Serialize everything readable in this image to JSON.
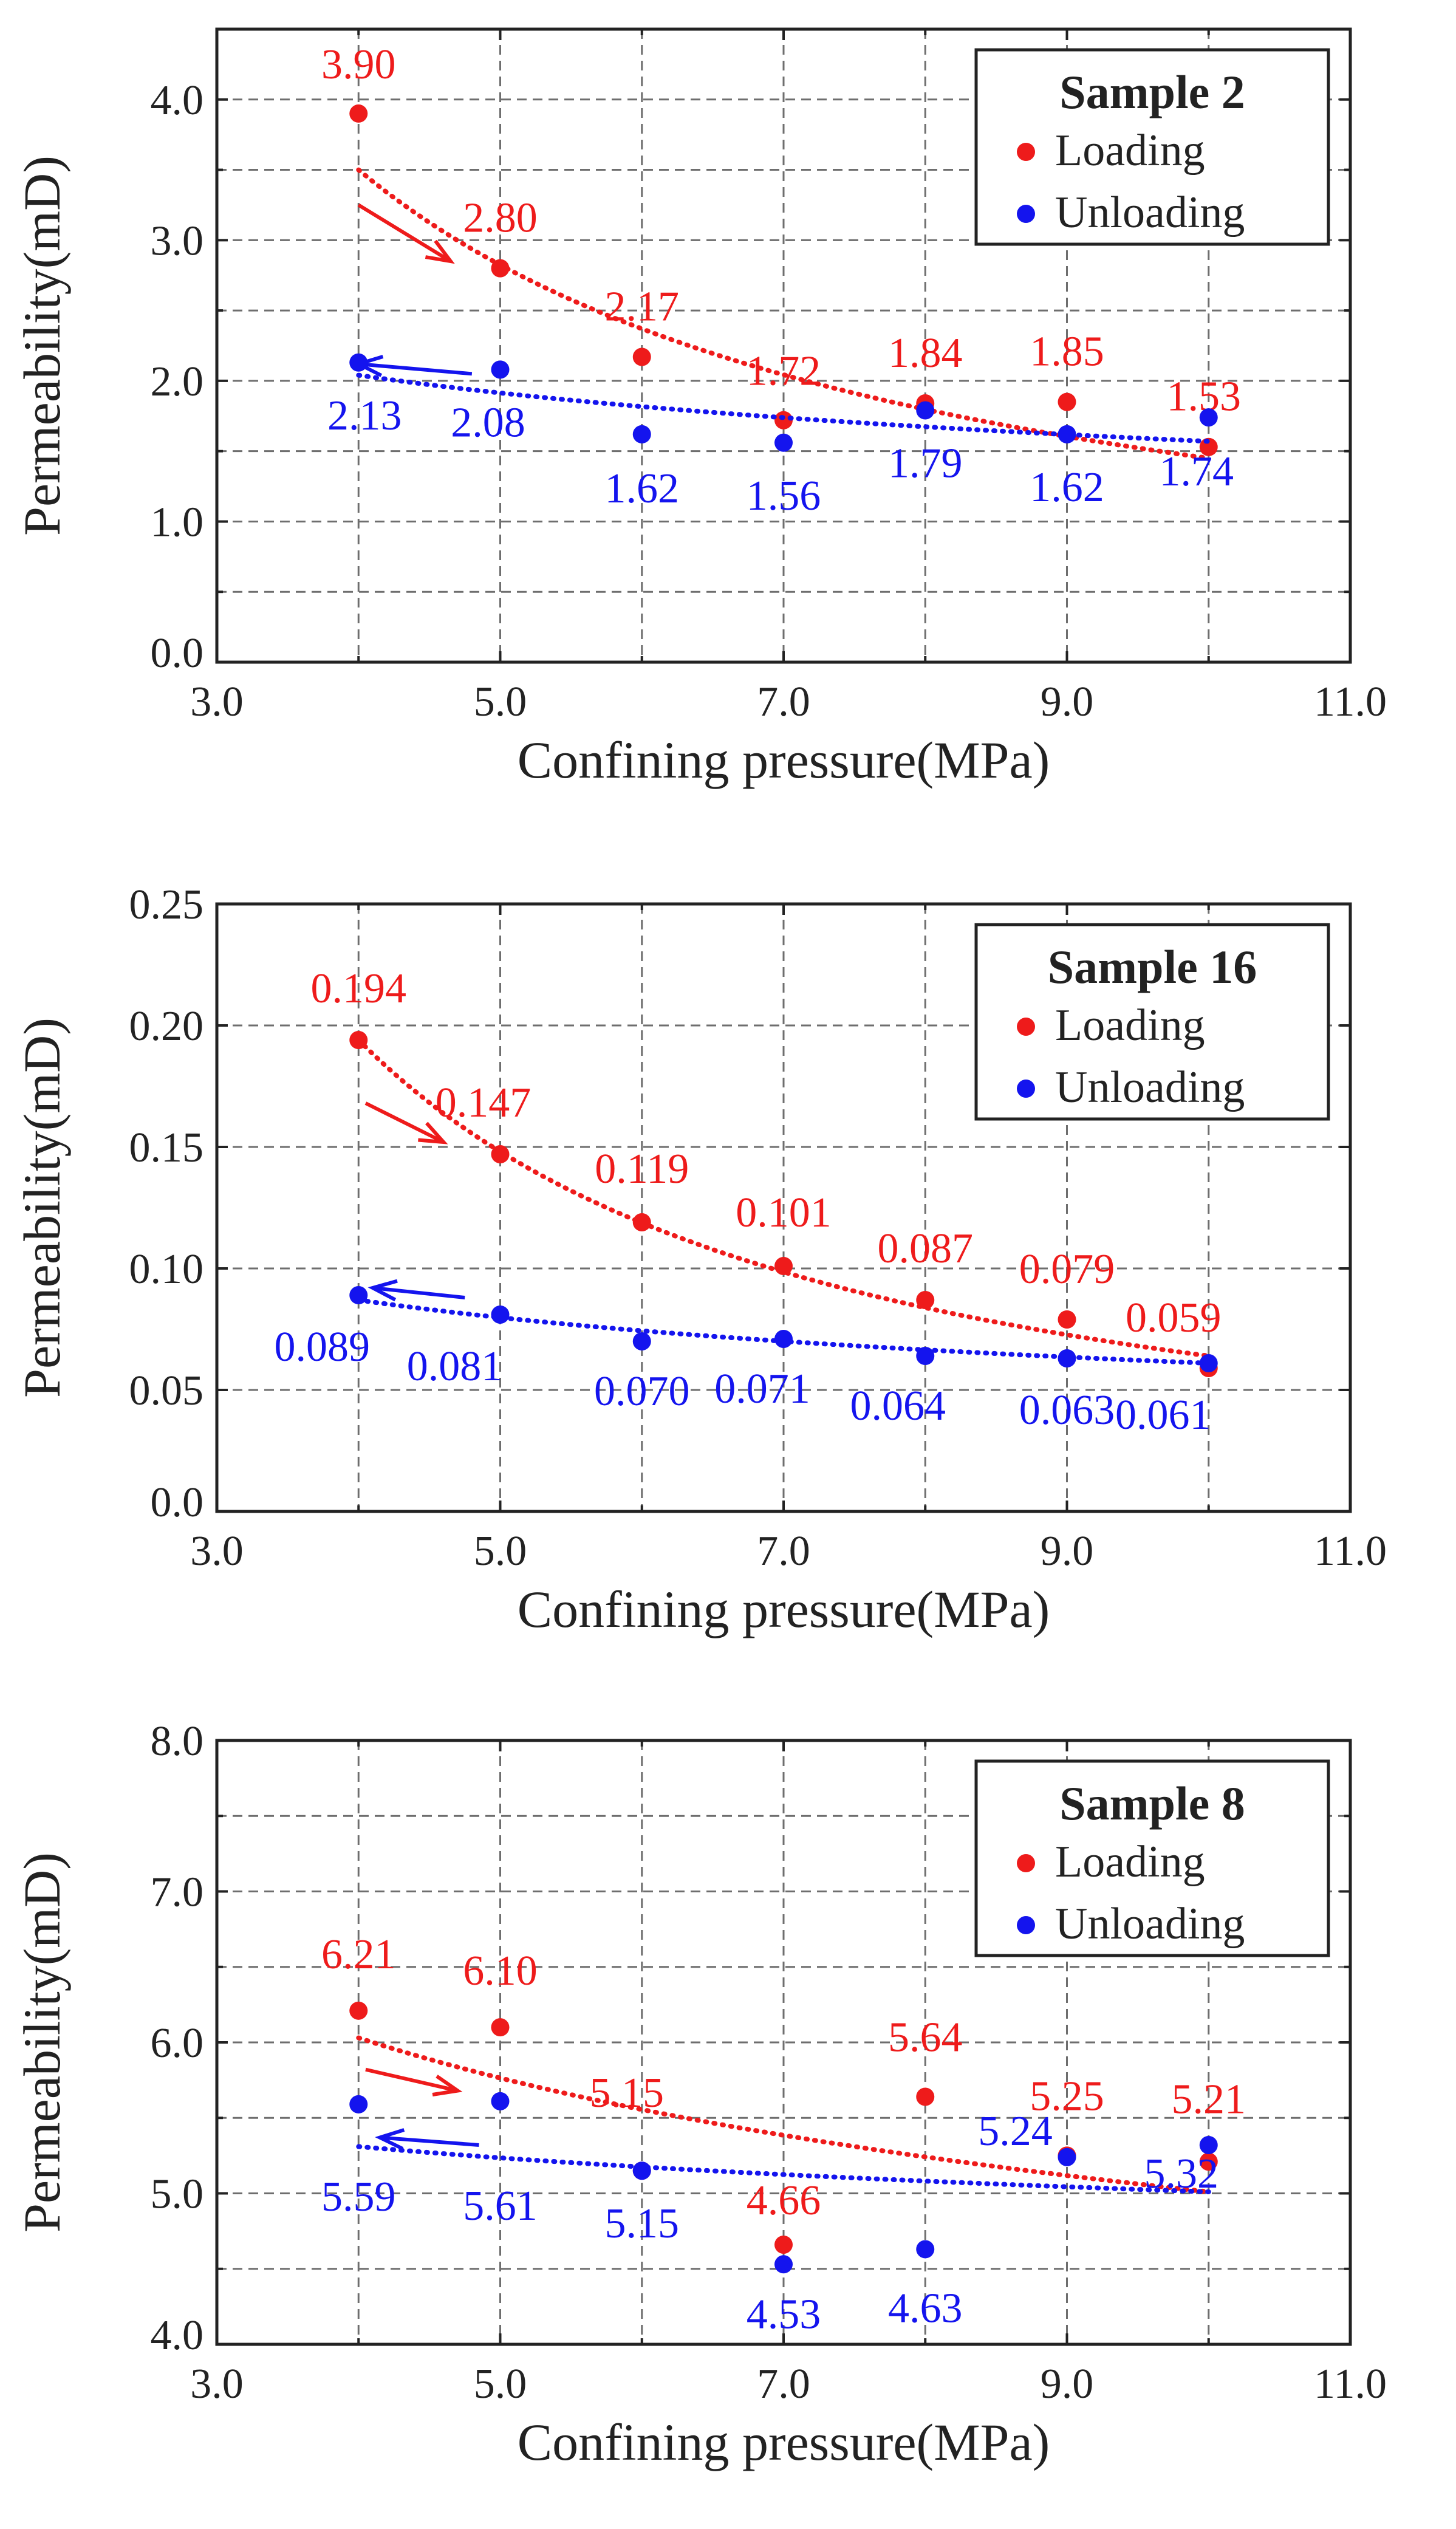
{
  "colors": {
    "loading": "#ee1b1b",
    "unloading": "#1414ee",
    "grid": "#6e6e6e",
    "frame": "#222222",
    "text": "#222222"
  },
  "chart_data": [
    {
      "type": "scatter",
      "title": "Sample 2",
      "xlabel": "Confining pressure(MPa)",
      "ylabel": "Permeability(mD)",
      "xlim": [
        3.0,
        11.0
      ],
      "ylim": [
        0.0,
        4.5
      ],
      "xticks": [
        3.0,
        5.0,
        7.0,
        9.0,
        11.0
      ],
      "xtick_labels": [
        "3.0",
        "5.0",
        "7.0",
        "9.0",
        "11.0"
      ],
      "x_minor": [
        4.0,
        6.0,
        8.0,
        10.0
      ],
      "yticks": [
        0.0,
        1.0,
        2.0,
        3.0,
        4.0
      ],
      "ytick_labels": [
        "0.0",
        "1.0",
        "2.0",
        "3.0",
        "4.0"
      ],
      "y_minor": [
        0.5,
        1.5,
        2.5,
        3.5
      ],
      "legend": "top-right",
      "series": [
        {
          "name": "Loading",
          "key": "loading",
          "x": [
            4,
            5,
            6,
            7,
            8,
            9,
            10
          ],
          "values": [
            3.9,
            2.8,
            2.17,
            1.72,
            1.84,
            1.85,
            1.53
          ],
          "labels": [
            "3.90",
            "2.80",
            "2.17",
            "1.72",
            "1.84",
            "1.85",
            "1.53"
          ],
          "fit": {
            "x": [
              4,
              10
            ],
            "y": [
              3.5,
              1.45
            ],
            "curve": "power"
          },
          "arrow": {
            "from": [
              4.0,
              3.25
            ],
            "to": [
              4.65,
              2.85
            ]
          }
        },
        {
          "name": "Unloading",
          "key": "unloading",
          "x": [
            4,
            5,
            6,
            7,
            8,
            9,
            10
          ],
          "values": [
            2.13,
            2.08,
            1.62,
            1.56,
            1.79,
            1.62,
            1.74
          ],
          "labels": [
            "2.13",
            "2.08",
            "1.62",
            "1.56",
            "1.79",
            "1.62",
            "1.74"
          ],
          "fit": {
            "x": [
              4,
              10
            ],
            "y": [
              2.04,
              1.57
            ],
            "curve": "power"
          },
          "arrow": {
            "from": [
              4.8,
              2.05
            ],
            "to": [
              4.0,
              2.12
            ]
          }
        }
      ]
    },
    {
      "type": "scatter",
      "title": "Sample 16",
      "xlabel": "Confining pressure(MPa)",
      "ylabel": "Permeability(mD)",
      "xlim": [
        3.0,
        11.0
      ],
      "ylim": [
        0.0,
        0.25
      ],
      "xticks": [
        3.0,
        5.0,
        7.0,
        9.0,
        11.0
      ],
      "xtick_labels": [
        "3.0",
        "5.0",
        "7.0",
        "9.0",
        "11.0"
      ],
      "x_minor": [
        4.0,
        6.0,
        8.0,
        10.0
      ],
      "yticks": [
        0.0,
        0.05,
        0.1,
        0.15,
        0.2,
        0.25
      ],
      "ytick_labels": [
        "0.0",
        "0.05",
        "0.10",
        "0.15",
        "0.20",
        "0.25"
      ],
      "y_minor": [],
      "legend": "top-right",
      "series": [
        {
          "name": "Loading",
          "key": "loading",
          "x": [
            4,
            5,
            6,
            7,
            8,
            9,
            10
          ],
          "values": [
            0.194,
            0.147,
            0.119,
            0.101,
            0.087,
            0.079,
            0.059
          ],
          "labels": [
            "0.194",
            "0.147",
            "0.119",
            "0.101",
            "0.087",
            "0.079",
            "0.059"
          ],
          "fit": {
            "x": [
              4,
              10
            ],
            "y": [
              0.194,
              0.064
            ],
            "curve": "power"
          },
          "arrow": {
            "from": [
              4.05,
              0.168
            ],
            "to": [
              4.6,
              0.152
            ]
          }
        },
        {
          "name": "Unloading",
          "key": "unloading",
          "x": [
            4,
            5,
            6,
            7,
            8,
            9,
            10
          ],
          "values": [
            0.089,
            0.081,
            0.07,
            0.071,
            0.064,
            0.063,
            0.061
          ],
          "labels": [
            "0.089",
            "0.081",
            "0.070",
            "0.071",
            "0.064",
            "0.063",
            "0.061"
          ],
          "fit": {
            "x": [
              4,
              10
            ],
            "y": [
              0.087,
              0.061
            ],
            "curve": "power"
          },
          "arrow": {
            "from": [
              4.75,
              0.088
            ],
            "to": [
              4.1,
              0.092
            ]
          }
        }
      ]
    },
    {
      "type": "scatter",
      "title": "Sample 8",
      "xlabel": "Confining pressure(MPa)",
      "ylabel": "Permeability(mD)",
      "xlim": [
        3.0,
        11.0
      ],
      "ylim": [
        4.0,
        8.0
      ],
      "xticks": [
        3.0,
        5.0,
        7.0,
        9.0,
        11.0
      ],
      "xtick_labels": [
        "3.0",
        "5.0",
        "7.0",
        "9.0",
        "11.0"
      ],
      "x_minor": [
        4.0,
        6.0,
        8.0,
        10.0
      ],
      "yticks": [
        4.0,
        5.0,
        6.0,
        7.0,
        8.0
      ],
      "ytick_labels": [
        "4.0",
        "5.0",
        "6.0",
        "7.0",
        "8.0"
      ],
      "y_minor": [
        4.5,
        5.5,
        6.5,
        7.5
      ],
      "legend": "top-right",
      "series": [
        {
          "name": "Loading",
          "key": "loading",
          "x": [
            4,
            5,
            6,
            7,
            8,
            9,
            10
          ],
          "values": [
            6.21,
            6.1,
            5.15,
            4.66,
            5.64,
            5.25,
            5.21
          ],
          "labels": [
            "6.21",
            "6.10",
            "5.15",
            "4.66",
            "5.64",
            "5.25",
            "5.21"
          ],
          "fit": {
            "x": [
              4,
              10
            ],
            "y": [
              6.03,
              5.01
            ],
            "curve": "power"
          },
          "arrow": {
            "from": [
              4.05,
              5.82
            ],
            "to": [
              4.7,
              5.68
            ]
          }
        },
        {
          "name": "Unloading",
          "key": "unloading",
          "x": [
            4,
            5,
            6,
            7,
            8,
            9,
            10
          ],
          "values": [
            5.59,
            5.61,
            5.15,
            4.53,
            4.63,
            5.24,
            5.32
          ],
          "labels": [
            "5.59",
            "5.61",
            "5.15",
            "4.53",
            "4.63",
            "5.24",
            "5.32"
          ],
          "fit": {
            "x": [
              4,
              10
            ],
            "y": [
              5.31,
              5.01
            ],
            "curve": "power"
          },
          "arrow": {
            "from": [
              4.85,
              5.32
            ],
            "to": [
              4.15,
              5.37
            ]
          }
        }
      ]
    }
  ]
}
